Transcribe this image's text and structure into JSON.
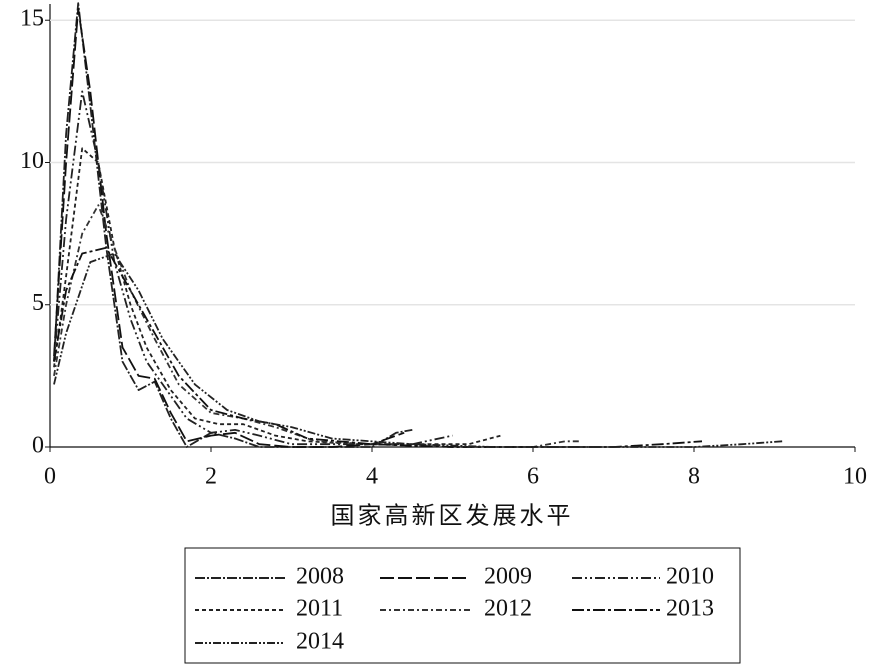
{
  "chart_data": {
    "type": "line",
    "x_label": "国家高新区发展水平",
    "xlim": [
      0,
      10
    ],
    "xticks": [
      0,
      2,
      4,
      6,
      8,
      10
    ],
    "ylim": [
      0,
      15.5
    ],
    "yticks": [
      0,
      5,
      10,
      15
    ],
    "grid": true,
    "series": [
      {
        "name": "2008",
        "color": "#222222",
        "dash": "10,2,2,2",
        "x": [
          0.05,
          0.2,
          0.35,
          0.5,
          0.7,
          0.9,
          1.1,
          1.3,
          1.5,
          1.7,
          2.0,
          2.3,
          2.6,
          3.0,
          3.5,
          4.0,
          4.3,
          4.5
        ],
        "values": [
          3,
          11,
          15.6,
          12,
          7,
          3,
          2,
          2.3,
          1,
          0,
          0.5,
          0.3,
          0,
          0,
          0,
          0,
          0.5,
          0.6
        ]
      },
      {
        "name": "2009",
        "color": "#111111",
        "dash": "14,4",
        "x": [
          0.05,
          0.2,
          0.35,
          0.5,
          0.7,
          0.9,
          1.1,
          1.3,
          1.5,
          1.7,
          2.0,
          2.3,
          2.6,
          3.0,
          3.5,
          4.0,
          4.4
        ],
        "values": [
          3.2,
          10,
          15.4,
          12.5,
          7.5,
          3.5,
          2.5,
          2.4,
          1.2,
          0.2,
          0.4,
          0.5,
          0.1,
          0,
          0,
          0.1,
          0.5
        ]
      },
      {
        "name": "2010",
        "color": "#222222",
        "dash": "10,3,2,3,2,3",
        "x": [
          0.05,
          0.2,
          0.4,
          0.6,
          0.8,
          1.0,
          1.2,
          1.4,
          1.7,
          2.0,
          2.3,
          2.6,
          3.0,
          3.5,
          4.0,
          4.5,
          5.0
        ],
        "values": [
          3,
          8,
          12.5,
          10,
          6.5,
          4.5,
          3,
          2.2,
          1,
          0.5,
          0.6,
          0.4,
          0.1,
          0.1,
          0.1,
          0.1,
          0.4
        ]
      },
      {
        "name": "2011",
        "color": "#222222",
        "dash": "4,3",
        "x": [
          0.05,
          0.2,
          0.4,
          0.6,
          0.8,
          1.0,
          1.2,
          1.5,
          1.8,
          2.1,
          2.4,
          2.8,
          3.2,
          3.8,
          4.5,
          5.2,
          5.6
        ],
        "values": [
          2.8,
          6,
          10.5,
          10,
          7,
          5,
          3.5,
          2,
          1,
          0.8,
          0.8,
          0.4,
          0.2,
          0.1,
          0.1,
          0.1,
          0.4
        ]
      },
      {
        "name": "2012",
        "color": "#333333",
        "dash": "6,3,2,3",
        "x": [
          0.05,
          0.2,
          0.4,
          0.6,
          0.8,
          1.0,
          1.3,
          1.6,
          2.0,
          2.4,
          2.8,
          3.3,
          4.0,
          5.0,
          6.0,
          6.4,
          6.6
        ],
        "values": [
          2.5,
          5,
          7.5,
          8.5,
          7,
          5.5,
          3.8,
          2.2,
          1.2,
          1,
          0.7,
          0.2,
          0.1,
          0,
          0,
          0.2,
          0.2
        ]
      },
      {
        "name": "2013",
        "color": "#111111",
        "dash": "12,3,3,3",
        "x": [
          0.05,
          0.2,
          0.4,
          0.7,
          1.0,
          1.3,
          1.6,
          2.0,
          2.4,
          2.8,
          3.2,
          4.0,
          5.0,
          6.0,
          7.0,
          7.6,
          8.1
        ],
        "values": [
          3,
          5.5,
          6.8,
          7,
          5.5,
          4,
          2.5,
          1.3,
          1,
          0.8,
          0.3,
          0.1,
          0,
          0,
          0,
          0.1,
          0.2
        ]
      },
      {
        "name": "2014",
        "color": "#222222",
        "dash": "8,2,2,2,2,2",
        "x": [
          0.05,
          0.2,
          0.5,
          0.8,
          1.1,
          1.4,
          1.8,
          2.2,
          2.6,
          3.0,
          3.5,
          4.5,
          5.5,
          7.0,
          8.0,
          8.6,
          9.1
        ],
        "values": [
          2.2,
          4,
          6.5,
          6.8,
          5.5,
          3.8,
          2.2,
          1.3,
          0.9,
          0.7,
          0.3,
          0.1,
          0,
          0,
          0,
          0.1,
          0.2
        ]
      }
    ]
  }
}
